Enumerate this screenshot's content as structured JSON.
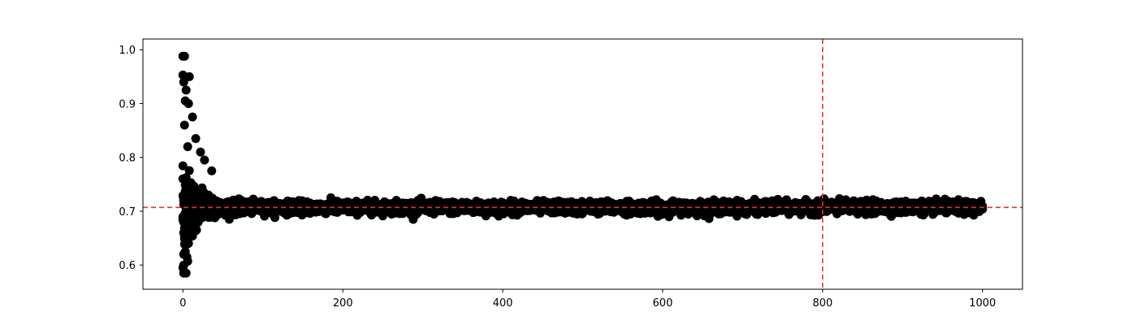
{
  "chart_data": {
    "type": "scatter",
    "title": "",
    "xlabel": "",
    "ylabel": "",
    "xlim": [
      -50,
      1050
    ],
    "ylim": [
      0.555,
      1.02
    ],
    "x_ticks": [
      0,
      200,
      400,
      600,
      800,
      1000
    ],
    "x_tick_labels": [
      "0",
      "200",
      "400",
      "600",
      "800",
      "1000"
    ],
    "y_ticks": [
      0.6,
      0.7,
      0.8,
      0.9,
      1.0
    ],
    "y_tick_labels": [
      "0.6",
      "0.7",
      "0.8",
      "0.9",
      "1.0"
    ],
    "grid": false,
    "legend": "none",
    "series": [
      {
        "color": "#000000",
        "marker": "circle",
        "x_range": [
          0,
          1000
        ],
        "converges_to": 0.707,
        "outliers": [
          {
            "x": 0,
            "y": 0.988
          },
          {
            "x": 2,
            "y": 0.988
          },
          {
            "x": 0,
            "y": 0.953
          },
          {
            "x": 8,
            "y": 0.95
          },
          {
            "x": 1,
            "y": 0.94
          },
          {
            "x": 4,
            "y": 0.925
          },
          {
            "x": 3,
            "y": 0.905
          },
          {
            "x": 7,
            "y": 0.9
          },
          {
            "x": 12,
            "y": 0.875
          },
          {
            "x": 2,
            "y": 0.86
          },
          {
            "x": 16,
            "y": 0.835
          },
          {
            "x": 6,
            "y": 0.82
          },
          {
            "x": 22,
            "y": 0.81
          },
          {
            "x": 27,
            "y": 0.795
          },
          {
            "x": 36,
            "y": 0.775
          },
          {
            "x": 1,
            "y": 0.66
          },
          {
            "x": 5,
            "y": 0.648
          },
          {
            "x": 3,
            "y": 0.625
          },
          {
            "x": 1,
            "y": 0.62
          },
          {
            "x": 5,
            "y": 0.615
          },
          {
            "x": 0,
            "y": 0.595
          },
          {
            "x": 1,
            "y": 0.585
          },
          {
            "x": 4,
            "y": 0.585
          }
        ]
      }
    ],
    "reference_lines": [
      {
        "orientation": "horizontal",
        "value": 0.707,
        "color": "#e8341c",
        "style": "dashed"
      },
      {
        "orientation": "vertical",
        "value": 800,
        "color": "#e8341c",
        "style": "dashed"
      }
    ]
  }
}
